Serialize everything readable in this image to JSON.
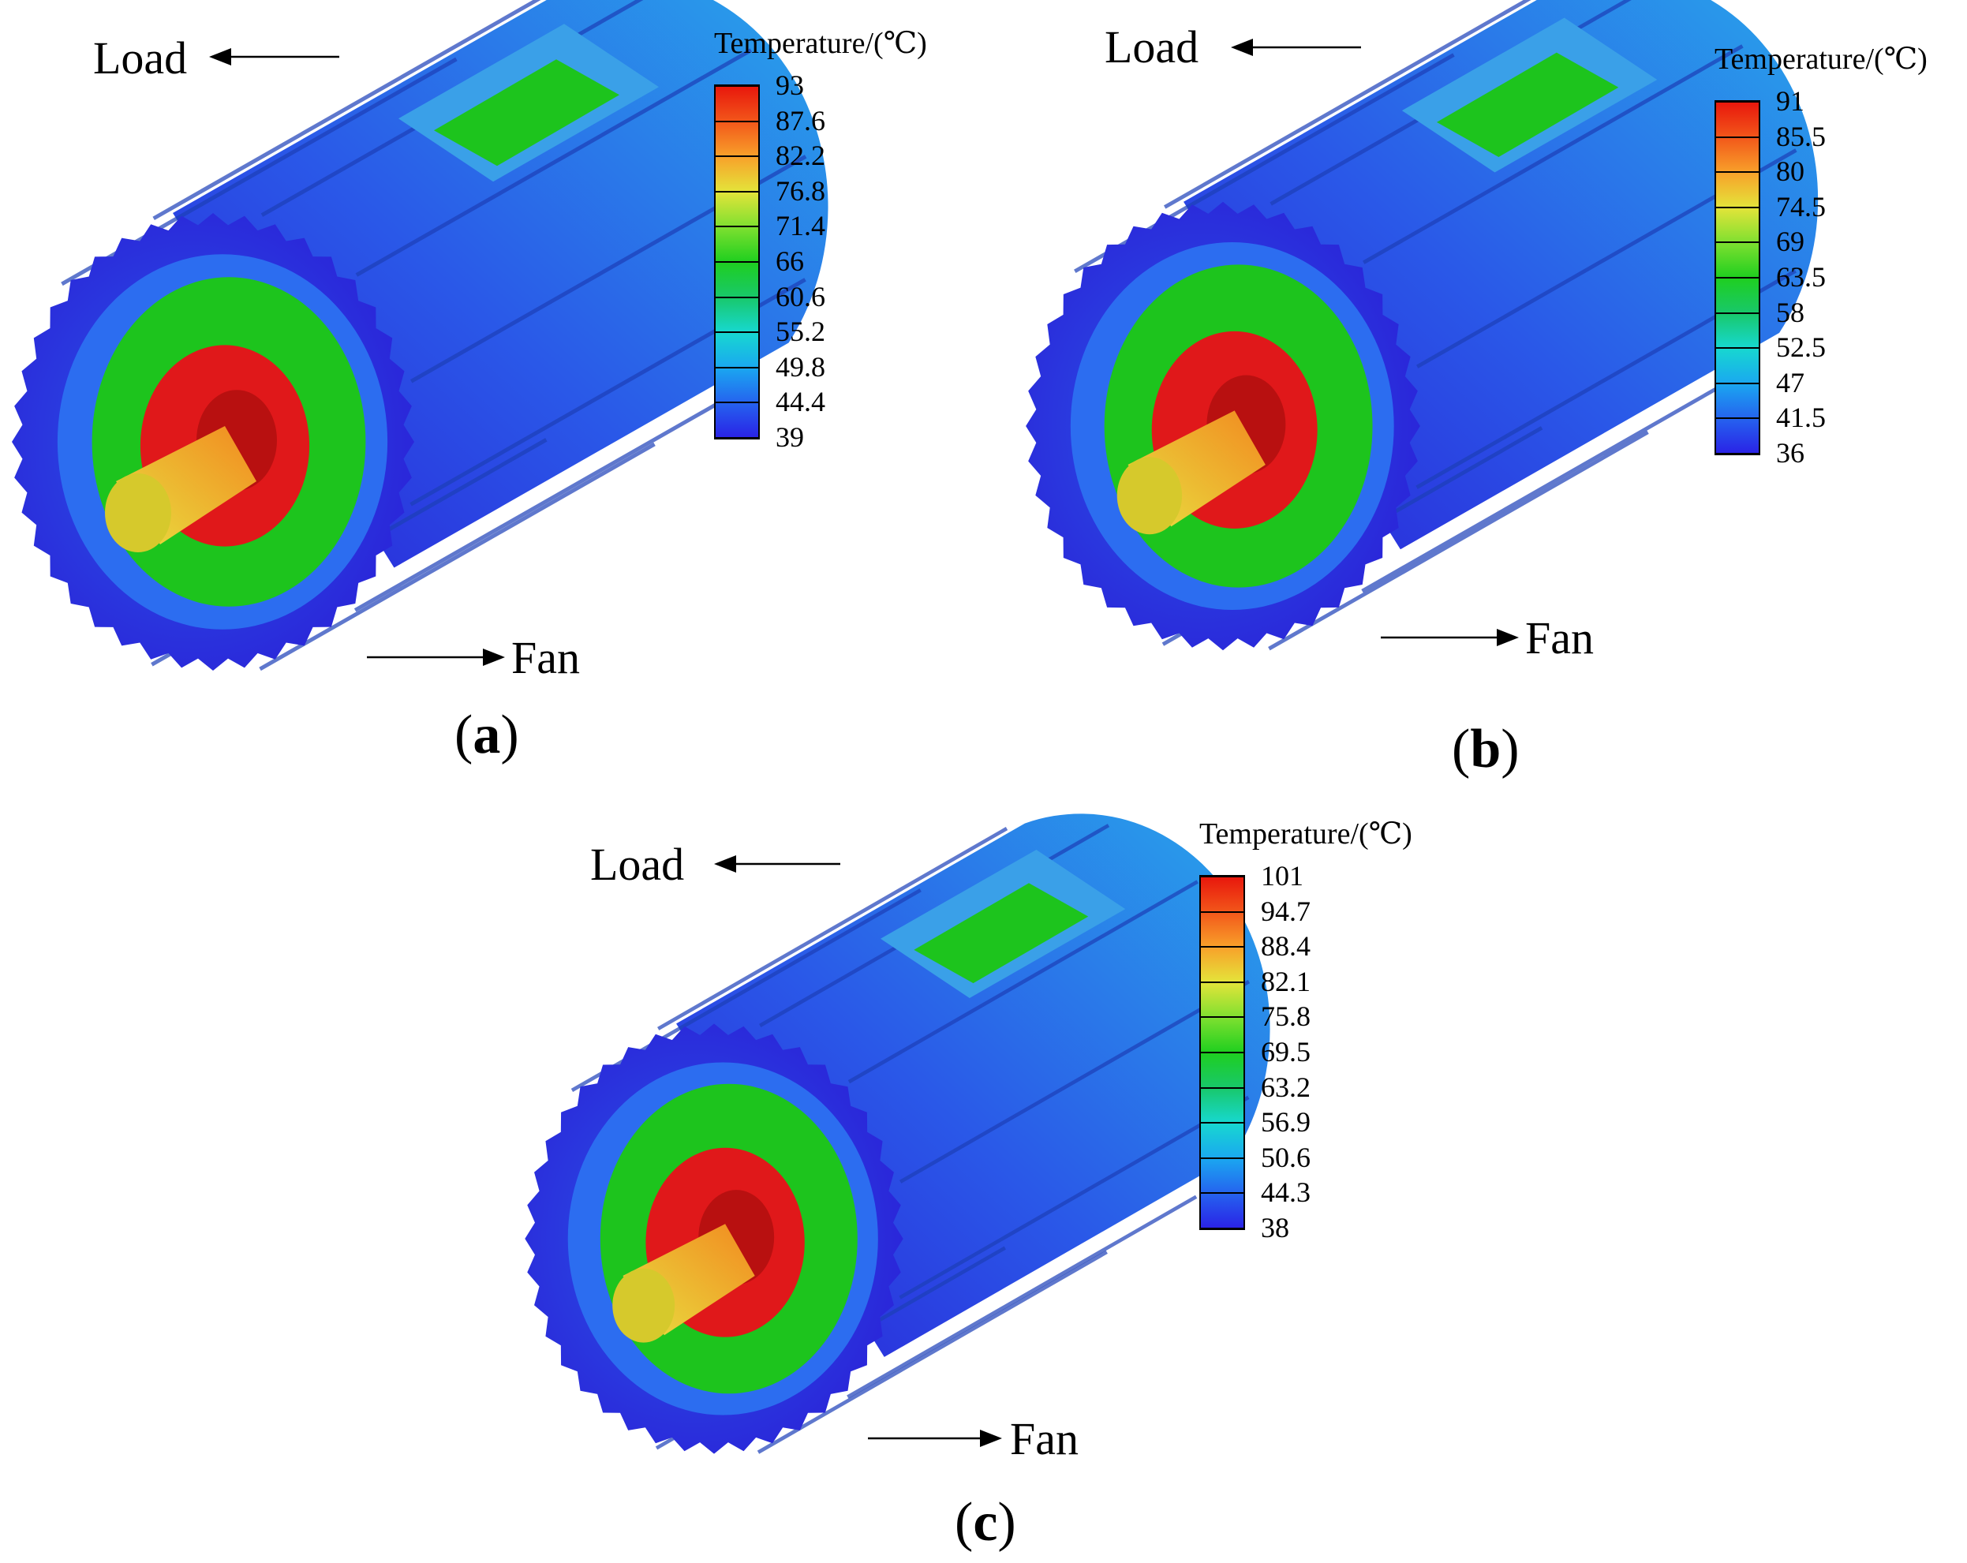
{
  "figure": {
    "panels": [
      {
        "id": "a",
        "caption_letter": "a",
        "load_label": "Load",
        "fan_label": "Fan",
        "legend": {
          "title": "Temperature/(℃)",
          "ticks": [
            "93",
            "87.6",
            "82.2",
            "76.8",
            "71.4",
            "66",
            "60.6",
            "55.2",
            "49.8",
            "44.4",
            "39"
          ]
        }
      },
      {
        "id": "b",
        "caption_letter": "b",
        "load_label": "Load",
        "fan_label": "Fan",
        "legend": {
          "title": "Temperature/(℃)",
          "ticks": [
            "91",
            "85.5",
            "80",
            "74.5",
            "69",
            "63.5",
            "58",
            "52.5",
            "47",
            "41.5",
            "36"
          ]
        }
      },
      {
        "id": "c",
        "caption_letter": "c",
        "load_label": "Load",
        "fan_label": "Fan",
        "legend": {
          "title": "Temperature/(℃)",
          "ticks": [
            "101",
            "94.7",
            "88.4",
            "82.1",
            "75.8",
            "69.5",
            "63.2",
            "56.9",
            "50.6",
            "44.3",
            "38"
          ]
        }
      }
    ],
    "colormap": [
      "#e8160c",
      "#f2561a",
      "#f8a02a",
      "#e4e43a",
      "#7fe030",
      "#1fcf1f",
      "#18c86a",
      "#17d8d0",
      "#1aa8f0",
      "#2563ef",
      "#2a22e6"
    ],
    "colors": {
      "frame_dark": "#2a22d8",
      "frame_mid": "#2a58e8",
      "frame_light": "#29a6ea",
      "stator_green": "#1dc41d",
      "rotor_red": "#e0181a",
      "shaft_yellow": "#d6c92c"
    }
  }
}
